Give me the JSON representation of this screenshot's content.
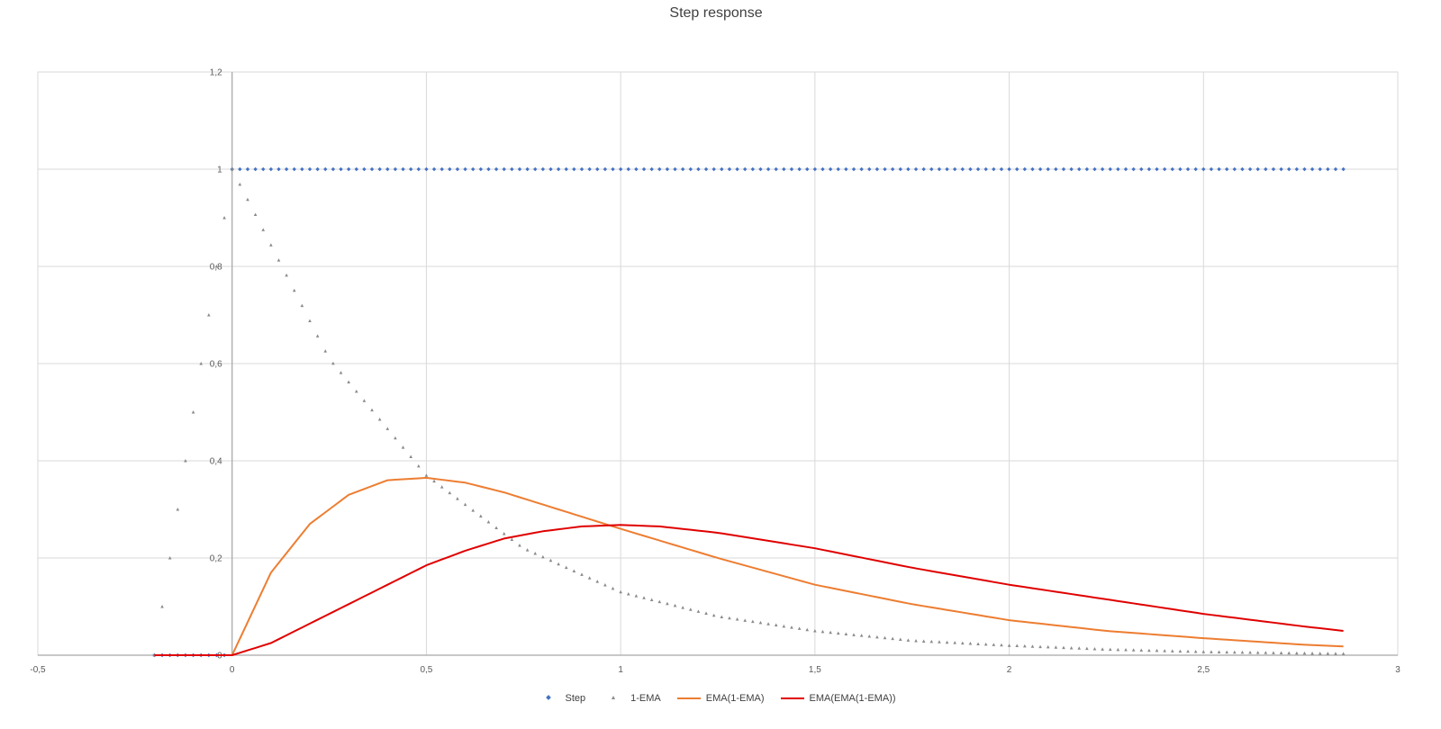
{
  "chart_data": {
    "type": "scatter",
    "title": "Step response",
    "xlabel": "",
    "ylabel": "",
    "xlim": [
      -0.5,
      3
    ],
    "ylim": [
      0,
      1.2
    ],
    "x_ticks": [
      "-0,5",
      "0",
      "0,5",
      "1",
      "1,5",
      "2",
      "2,5",
      "3"
    ],
    "y_ticks": [
      "0",
      "0,2",
      "0,4",
      "0,6",
      "0,8",
      "1",
      "1,2"
    ],
    "grid": true,
    "legend_position": "bottom",
    "sample_step": 0.02,
    "x_range": [
      -0.2,
      2.86
    ],
    "series": [
      {
        "name": "Step",
        "style": "markers-diamond",
        "color": "#4472C4",
        "x": [
          -0.2,
          -0.001,
          0,
          2.86
        ],
        "y": [
          0,
          0,
          1,
          1
        ]
      },
      {
        "name": "1-EMA",
        "style": "markers-triangle",
        "color": "#8A8A8A",
        "x": [
          -0.2,
          0,
          0.25,
          0.5,
          0.75,
          1.0,
          1.25,
          1.5,
          1.75,
          2.0,
          2.25,
          2.5,
          2.75,
          2.86
        ],
        "y": [
          0,
          1.0,
          0.61,
          0.37,
          0.22,
          0.13,
          0.08,
          0.05,
          0.03,
          0.02,
          0.012,
          0.007,
          0.004,
          0.003
        ]
      },
      {
        "name": "EMA(1-EMA)",
        "style": "line",
        "color": "#ED7D31",
        "x": [
          -0.2,
          0,
          0.1,
          0.2,
          0.3,
          0.4,
          0.5,
          0.6,
          0.7,
          0.8,
          1.0,
          1.25,
          1.5,
          1.75,
          2.0,
          2.25,
          2.5,
          2.75,
          2.86
        ],
        "y": [
          0,
          0,
          0.17,
          0.27,
          0.33,
          0.36,
          0.365,
          0.355,
          0.335,
          0.31,
          0.26,
          0.2,
          0.145,
          0.105,
          0.072,
          0.05,
          0.035,
          0.022,
          0.018
        ]
      },
      {
        "name": "EMA(EMA(1-EMA))",
        "style": "line",
        "color": "#E00000",
        "x": [
          -0.2,
          0,
          0.1,
          0.2,
          0.3,
          0.4,
          0.5,
          0.6,
          0.7,
          0.8,
          0.9,
          1.0,
          1.1,
          1.25,
          1.5,
          1.75,
          2.0,
          2.25,
          2.5,
          2.75,
          2.86
        ],
        "y": [
          0,
          0,
          0.025,
          0.065,
          0.105,
          0.145,
          0.185,
          0.215,
          0.24,
          0.255,
          0.265,
          0.268,
          0.265,
          0.252,
          0.22,
          0.18,
          0.145,
          0.115,
          0.085,
          0.06,
          0.05
        ]
      }
    ]
  }
}
